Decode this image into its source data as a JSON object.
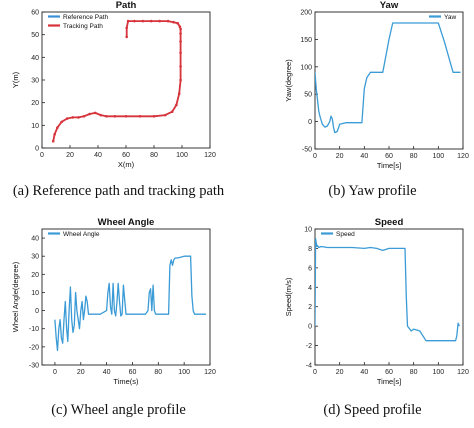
{
  "captions": {
    "a": "(a) Reference path and tracking path",
    "b": "(b) Yaw profile",
    "c": "(c) Wheel angle profile",
    "d": "(d) Speed profile"
  },
  "colors": {
    "reference": "#3b8fd9",
    "tracking": "#d7333b",
    "profile": "#3b9bd6"
  },
  "chart_data": [
    {
      "id": "path",
      "type": "line",
      "title": "Path",
      "xlabel": "X(m)",
      "ylabel": "Y(m)",
      "xlim": [
        0,
        120
      ],
      "ylim": [
        0,
        60
      ],
      "xticks": [
        0,
        20,
        40,
        60,
        80,
        100,
        120
      ],
      "yticks": [
        0,
        10,
        20,
        30,
        40,
        50,
        60
      ],
      "grid": false,
      "legend_position": "top-left",
      "series": [
        {
          "name": "Reference Path",
          "color": "#3b8fd9",
          "x": [
            8,
            9,
            11,
            14,
            18,
            22,
            26,
            30,
            34,
            38,
            42,
            46,
            52,
            60,
            70,
            80,
            88,
            93,
            96,
            98,
            99,
            99,
            99,
            99,
            99,
            99,
            98.5,
            97,
            94,
            90,
            84,
            78,
            72,
            66,
            61.5,
            60.5,
            60.5
          ],
          "y": [
            3,
            6,
            9,
            11.5,
            13,
            13.5,
            13.5,
            14,
            15,
            15.5,
            14.5,
            14,
            14,
            14,
            14,
            14,
            14.5,
            16,
            19,
            24,
            30,
            36,
            42,
            47,
            50.5,
            52.5,
            53.5,
            55,
            55.5,
            56,
            56,
            56,
            56,
            56,
            56,
            53,
            49
          ]
        },
        {
          "name": "Tracking Path",
          "color": "#d7333b",
          "x": [
            8,
            9,
            11,
            14,
            18,
            22,
            26,
            30,
            34,
            38,
            42,
            46,
            52,
            60,
            70,
            80,
            88,
            93,
            96,
            98,
            99,
            99,
            99,
            99,
            99,
            99,
            98.5,
            97,
            94,
            90,
            84,
            78,
            72,
            66,
            61.5,
            60.5,
            60.5
          ],
          "y": [
            3,
            6,
            9,
            11.5,
            13,
            13.5,
            13.5,
            14,
            15,
            15.5,
            14.5,
            14,
            14,
            14,
            14,
            14,
            14.5,
            16,
            19,
            24,
            30,
            36,
            42,
            47,
            50.5,
            52.5,
            53.5,
            55,
            55.5,
            56,
            56,
            56,
            56,
            56,
            56,
            53,
            49
          ]
        }
      ]
    },
    {
      "id": "yaw",
      "type": "line",
      "title": "Yaw",
      "xlabel": "Time[s]",
      "ylabel": "Yaw(degree)",
      "xlim": [
        0,
        120
      ],
      "ylim": [
        -50,
        200
      ],
      "xticks": [
        0,
        20,
        40,
        60,
        80,
        100,
        120
      ],
      "yticks": [
        -50,
        0,
        50,
        100,
        150,
        200
      ],
      "grid": false,
      "legend_position": "top-right",
      "series": [
        {
          "name": "Yaw",
          "color": "#3b9bd6",
          "x": [
            0,
            1,
            2,
            3,
            4,
            5,
            6,
            8,
            10,
            12,
            13,
            14,
            15,
            16,
            18,
            20,
            25,
            30,
            35,
            38,
            40,
            42,
            45,
            47,
            50,
            55,
            60,
            63,
            65,
            70,
            80,
            90,
            95,
            100,
            105,
            110,
            112,
            115,
            118
          ],
          "y": [
            90,
            60,
            40,
            20,
            10,
            2,
            -5,
            -10,
            -8,
            0,
            10,
            5,
            -10,
            -20,
            -18,
            -5,
            -2,
            -2,
            -2,
            -2,
            60,
            80,
            90,
            90,
            90,
            90,
            150,
            180,
            180,
            180,
            180,
            180,
            180,
            180,
            145,
            105,
            90,
            90,
            90
          ]
        }
      ]
    },
    {
      "id": "wheel",
      "type": "line",
      "title": "Wheel Angle",
      "xlabel": "Time(s)",
      "ylabel": "Wheel Angle(degree)",
      "xlim": [
        -10,
        120
      ],
      "ylim": [
        -30,
        45
      ],
      "xticks": [
        0,
        20,
        40,
        60,
        80,
        100,
        120
      ],
      "yticks": [
        -30,
        -20,
        -10,
        0,
        10,
        20,
        30,
        40
      ],
      "grid": false,
      "legend_position": "top-left",
      "series": [
        {
          "name": "Wheel Angle",
          "color": "#3b9bd6",
          "x": [
            0,
            1,
            2,
            3,
            4,
            5,
            6,
            7,
            8,
            9,
            10,
            11,
            12,
            13,
            14,
            15,
            16,
            17,
            18,
            19,
            20,
            21,
            22,
            23,
            24,
            25,
            26,
            28,
            30,
            35,
            40,
            41,
            42,
            43,
            44,
            45,
            46,
            47,
            48,
            49,
            50,
            51,
            52,
            53,
            55,
            60,
            65,
            70,
            72,
            73,
            74,
            75,
            76,
            77,
            78,
            80,
            85,
            88,
            89,
            90,
            91,
            92,
            93,
            95,
            100,
            105,
            106,
            107,
            108,
            110,
            115,
            117
          ],
          "y": [
            -5,
            -15,
            -22,
            -10,
            -5,
            -15,
            -18,
            -5,
            5,
            -10,
            -17,
            0,
            13,
            -5,
            -12,
            -8,
            10,
            0,
            -5,
            -10,
            0,
            5,
            -5,
            0,
            8,
            5,
            -2,
            -2,
            -2,
            -2,
            0,
            10,
            15,
            2,
            -2,
            15,
            0,
            -3,
            5,
            15,
            5,
            -3,
            -2,
            14,
            -2,
            -2,
            -2,
            -2,
            0,
            10,
            12,
            0,
            14,
            0,
            -2,
            -2,
            -2,
            -2,
            25,
            28,
            25,
            28,
            29,
            29,
            30,
            30,
            8,
            0,
            -2,
            -2,
            -2,
            -2
          ]
        }
      ]
    },
    {
      "id": "speed",
      "type": "line",
      "title": "Speed",
      "xlabel": "Time[s]",
      "ylabel": "Speed(m/s)",
      "xlim": [
        0,
        120
      ],
      "ylim": [
        -4,
        10
      ],
      "xticks": [
        0,
        20,
        40,
        60,
        80,
        100,
        120
      ],
      "yticks": [
        -4,
        -2,
        0,
        2,
        4,
        6,
        8,
        10
      ],
      "grid": false,
      "legend_position": "top-left",
      "series": [
        {
          "name": "Speed",
          "color": "#3b9bd6",
          "x": [
            0,
            0.5,
            1,
            1.5,
            2,
            3,
            5,
            10,
            20,
            30,
            40,
            45,
            50,
            55,
            60,
            62,
            65,
            70,
            73,
            74,
            75,
            78,
            80,
            85,
            90,
            95,
            100,
            105,
            110,
            113,
            114,
            115,
            116,
            117
          ],
          "y": [
            0,
            9,
            8.6,
            8.2,
            8.3,
            8.1,
            8.2,
            8.1,
            8.1,
            8.1,
            8.0,
            8.1,
            8.0,
            7.8,
            8.0,
            8.0,
            8.0,
            8.0,
            8.0,
            3,
            0,
            -0.5,
            -0.3,
            -0.5,
            -1.5,
            -1.5,
            -1.5,
            -1.5,
            -1.5,
            -1.5,
            -1.5,
            -1.0,
            0.3,
            0
          ]
        }
      ]
    }
  ]
}
